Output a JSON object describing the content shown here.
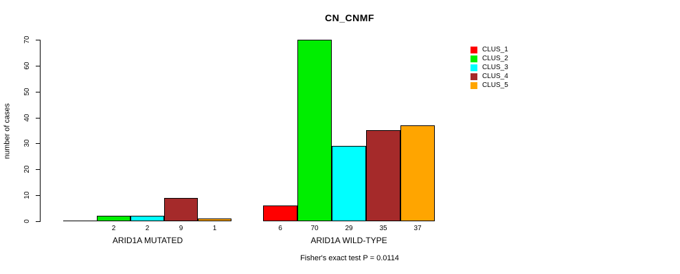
{
  "chart_data": {
    "type": "bar",
    "title": "CN_CNMF",
    "ylabel": "number of cases",
    "ylim": [
      0,
      70
    ],
    "yticks": [
      0,
      10,
      20,
      30,
      40,
      50,
      60,
      70
    ],
    "grid": false,
    "legend_position": "right-inside",
    "bar_value_labels_shown": true,
    "categories": [
      "ARID1A MUTATED",
      "ARID1A WILD-TYPE"
    ],
    "series": [
      {
        "name": "CLUS_1",
        "color": "#FF0000",
        "values": [
          0,
          6
        ]
      },
      {
        "name": "CLUS_2",
        "color": "#00EE00",
        "values": [
          2,
          70
        ]
      },
      {
        "name": "CLUS_3",
        "color": "#00FFFF",
        "values": [
          2,
          29
        ]
      },
      {
        "name": "CLUS_4",
        "color": "#A52A2A",
        "values": [
          9,
          35
        ]
      },
      {
        "name": "CLUS_5",
        "color": "#FFA500",
        "values": [
          1,
          37
        ]
      }
    ],
    "annotation": "Fisher's exact test P = 0.0114"
  }
}
